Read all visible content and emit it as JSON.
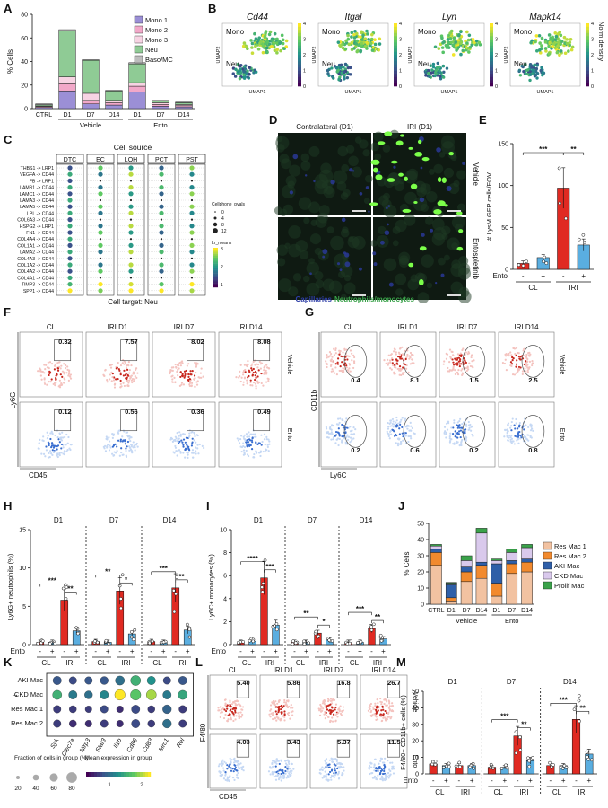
{
  "panel_letters": [
    "A",
    "B",
    "C",
    "D",
    "E",
    "F",
    "G",
    "H",
    "I",
    "J",
    "K",
    "L",
    "M"
  ],
  "colors": {
    "mono1": "#9b8fd6",
    "mono2": "#f2a8c9",
    "mono3": "#f7d3e3",
    "neu": "#8fcb95",
    "baso": "#bdbdbd",
    "resmac1": "#f2c2a1",
    "resmac2": "#f28a2e",
    "akimac": "#2f5fa8",
    "ckdmac": "#d9c9ec",
    "prolif": "#3aa24a",
    "red": "#e02a22",
    "blue": "#5aaee0",
    "viridis_lo": "#3b1f6e",
    "viridis_hi": "#f4e61e"
  },
  "panelA": {
    "ylabel": "% Cells",
    "legend": [
      "Mono 1",
      "Mono 2",
      "Mono 3",
      "Neu",
      "Baso/MC"
    ],
    "categories": [
      "CTRL",
      "D1",
      "D7",
      "D14",
      "D1",
      "D7",
      "D14"
    ],
    "groups": [
      "Vehicle",
      "Ento"
    ],
    "yticks": [
      "0",
      "20",
      "40",
      "60",
      "80"
    ],
    "chart_data": {
      "type": "bar",
      "stacked": true,
      "ylim": [
        0,
        80
      ],
      "categories": [
        "CTRL",
        "D1",
        "D7",
        "D14",
        "D1",
        "D7",
        "D14"
      ],
      "series": [
        {
          "name": "Mono 1",
          "values": [
            1,
            15,
            4,
            3,
            14,
            2,
            1.5
          ]
        },
        {
          "name": "Mono 2",
          "values": [
            0.8,
            6,
            3,
            2,
            5,
            1.5,
            1
          ]
        },
        {
          "name": "Mono 3",
          "values": [
            0.5,
            6,
            6,
            2,
            3,
            1.5,
            1
          ]
        },
        {
          "name": "Neu",
          "values": [
            1,
            39,
            28,
            8,
            16,
            1.5,
            1.5
          ]
        },
        {
          "name": "Baso/MC",
          "values": [
            0.7,
            1,
            0.5,
            0.5,
            1,
            0.5,
            0.5
          ]
        }
      ]
    }
  },
  "panelB": {
    "genes": [
      "Cd44",
      "Itgal",
      "Lyn",
      "Mapk14"
    ],
    "mono": "Mono",
    "neu": "Neu",
    "xlabel": "UMAP1",
    "ylabel": "UMAP2",
    "colorbar_ticks": [
      "0",
      "1",
      "2",
      "3",
      "4"
    ],
    "colorbar_label": "Norm density"
  },
  "panelC": {
    "title": "Cell source",
    "sources": [
      "DTC",
      "EC",
      "LOH",
      "PCT",
      "PST"
    ],
    "pairs": [
      "THBS1 -> LRP1",
      "VEGFA -> CD44",
      "FB -> LRP1",
      "LAMB1 -> CD44",
      "LAMC1 -> CD44",
      "LAMA3 -> CD44",
      "LAMA5 -> CD44",
      "LPL -> CD44",
      "COL6A3 -> CD44",
      "HSPG2 -> LRP1",
      "FN1 -> CD44",
      "COL4A4 -> CD44",
      "COL1A1 -> CD44",
      "LAMA2 -> CD44",
      "COL4A3 -> CD44",
      "COL1A2 -> CD44",
      "COL4A2 -> CD44",
      "COL4A1 -> CD44",
      "TIMP3 -> CD44",
      "SPP1 -> CD44"
    ],
    "target": "Cell target: Neu",
    "size_legend_title": "Cellphone_pvals",
    "size_legend": [
      "0",
      "4",
      "8",
      "12"
    ],
    "color_legend_title": "Lr_means",
    "color_legend": [
      "3",
      "2",
      "1"
    ]
  },
  "panelD": {
    "cols": [
      "Contralateral (D1)",
      "IRI (D1)"
    ],
    "rows": [
      "Vehicle",
      "Entospletinib"
    ],
    "caption_a": "Capillaries",
    "caption_b": "Neutrophils/monocytes"
  },
  "panelE": {
    "ylabel": "# LysM GFP cells/FOV",
    "yticks": [
      "0",
      "50",
      "100",
      "150"
    ],
    "ento_label": "Ento",
    "signs": [
      "-",
      "+",
      "-",
      "+"
    ],
    "groups": [
      "CL",
      "IRI"
    ],
    "sig": [
      "***",
      "**"
    ],
    "chart_data": {
      "type": "bar",
      "categories": [
        "CL -",
        "CL +",
        "IRI -",
        "IRI +"
      ],
      "values": [
        7,
        14,
        97,
        29
      ],
      "ylim": [
        0,
        150
      ]
    }
  },
  "panelF": {
    "conditions": [
      "CL",
      "IRI D1",
      "IRI D7",
      "IRI D14"
    ],
    "rows": [
      "Vehicle",
      "Ento"
    ],
    "xlabel": "CD45",
    "ylabel": "Ly6G",
    "vehicle_values": [
      "0.32",
      "7.57",
      "8.02",
      "8.08"
    ],
    "ento_values": [
      "0.12",
      "0.56",
      "0.36",
      "0.49"
    ]
  },
  "panelG": {
    "conditions": [
      "CL",
      "IRI D1",
      "IRI D7",
      "IRI D14"
    ],
    "rows": [
      "Vehicle",
      "Ento"
    ],
    "xlabel": "Ly6C",
    "ylabel": "CD11b",
    "vehicle_values": [
      "0.4",
      "8.1",
      "1.5",
      "2.5"
    ],
    "ento_values": [
      "0.2",
      "0.6",
      "0.2",
      "0.8"
    ]
  },
  "panelH": {
    "ylabel": "Ly6G+ neutrophils (%)",
    "days": [
      "D1",
      "D7",
      "D14"
    ],
    "yticks": [
      "0",
      "5",
      "10",
      "15"
    ],
    "ento_label": "Ento",
    "signs": [
      "-",
      "+",
      "-",
      "+"
    ],
    "groups": [
      "CL",
      "IRI"
    ],
    "sig": [
      [
        "***",
        "**"
      ],
      [
        "**",
        "*"
      ],
      [
        "***",
        "**"
      ]
    ],
    "chart_data": {
      "type": "bar",
      "ylim": [
        0,
        15
      ],
      "categories": [
        "CL -",
        "CL +",
        "IRI -",
        "IRI +"
      ],
      "series": [
        {
          "name": "D1",
          "values": [
            0.3,
            0.3,
            5.8,
            1.8
          ]
        },
        {
          "name": "D7",
          "values": [
            0.4,
            0.3,
            7,
            1.4
          ]
        },
        {
          "name": "D14",
          "values": [
            0.4,
            0.3,
            7.4,
            1.9
          ]
        }
      ]
    }
  },
  "panelI": {
    "ylabel": "Ly6C+ monocytes (%)",
    "days": [
      "D1",
      "D7",
      "D14"
    ],
    "yticks": [
      "0",
      "2",
      "4",
      "6",
      "8",
      "10"
    ],
    "ento_label": "Ento",
    "signs": [
      "-",
      "+",
      "-",
      "+"
    ],
    "groups": [
      "CL",
      "IRI"
    ],
    "sig": [
      [
        "****",
        "***"
      ],
      [
        "**",
        "*"
      ],
      [
        "***",
        "**"
      ]
    ],
    "chart_data": {
      "type": "bar",
      "ylim": [
        0,
        10
      ],
      "categories": [
        "CL -",
        "CL +",
        "IRI -",
        "IRI +"
      ],
      "series": [
        {
          "name": "D1",
          "values": [
            0.2,
            0.3,
            5.8,
            1.7
          ]
        },
        {
          "name": "D7",
          "values": [
            0.2,
            0.2,
            1.0,
            0.4
          ]
        },
        {
          "name": "D14",
          "values": [
            0.2,
            0.2,
            1.4,
            0.5
          ]
        }
      ]
    }
  },
  "panelJ": {
    "ylabel": "% Cells",
    "legend": [
      "Res Mac 1",
      "Res Mac 2",
      "AKI Mac",
      "CKD Mac",
      "Prolif Mac"
    ],
    "categories": [
      "CTRL",
      "D1",
      "D7",
      "D14",
      "D1",
      "D7",
      "D14"
    ],
    "groups": [
      "Vehicle",
      "Ento"
    ],
    "yticks": [
      "0",
      "10",
      "20",
      "30",
      "40",
      "50"
    ],
    "chart_data": {
      "type": "bar",
      "stacked": true,
      "ylim": [
        0,
        50
      ],
      "categories": [
        "CTRL",
        "D1",
        "D7",
        "D14",
        "D1",
        "D7",
        "D14"
      ],
      "series": [
        {
          "name": "Res Mac 1",
          "values": [
            24,
            2,
            14,
            16,
            5,
            19,
            20
          ]
        },
        {
          "name": "Res Mac 2",
          "values": [
            8,
            2,
            6,
            8,
            8,
            6,
            6
          ]
        },
        {
          "name": "AKI Mac",
          "values": [
            2,
            8,
            3,
            2,
            12,
            2,
            2
          ]
        },
        {
          "name": "CKD Mac",
          "values": [
            2,
            1,
            4,
            18,
            2,
            5,
            7
          ]
        },
        {
          "name": "Prolif Mac",
          "values": [
            1,
            0.5,
            3,
            3,
            1,
            2,
            2
          ]
        }
      ]
    }
  },
  "panelK": {
    "rows": [
      "AKI Mac",
      "CKD Mac",
      "Res Mac 1",
      "Res Mac 2"
    ],
    "genes": [
      "Syk",
      "Clec7a",
      "Nlrp3",
      "Stat3",
      "Il1b",
      "Cd86",
      "Cd83",
      "Mrc1",
      "Rel"
    ],
    "fraction_title": "Fraction of cells in group (%)",
    "fraction_ticks": [
      "20",
      "40",
      "60",
      "80"
    ],
    "expr_title": "Mean expression in group",
    "expr_ticks": [
      "1",
      "2"
    ],
    "expression": [
      [
        0.6,
        0.5,
        0.6,
        0.6,
        0.8,
        1.4,
        1.1,
        0.5,
        0.6
      ],
      [
        1.4,
        0.9,
        0.8,
        1.0,
        2.2,
        1.6,
        1.9,
        0.9,
        1.3
      ],
      [
        0.4,
        0.4,
        0.4,
        0.5,
        0.3,
        0.5,
        0.4,
        0.7,
        0.4
      ],
      [
        0.4,
        0.3,
        0.3,
        0.4,
        0.3,
        0.5,
        0.4,
        0.8,
        0.4
      ]
    ],
    "fraction": [
      [
        60,
        50,
        50,
        55,
        70,
        80,
        60,
        50,
        60
      ],
      [
        70,
        60,
        55,
        60,
        85,
        85,
        80,
        60,
        70
      ],
      [
        50,
        45,
        40,
        50,
        40,
        60,
        45,
        65,
        50
      ],
      [
        50,
        45,
        40,
        50,
        40,
        60,
        45,
        65,
        50
      ]
    ]
  },
  "panelL": {
    "conditions": [
      "CL",
      "IRI D1",
      "IRI D7",
      "IRI D14"
    ],
    "rows": [
      "Vehicle",
      "Ento"
    ],
    "xlabel": "CD45",
    "ylabel": "F4/80",
    "vehicle_values": [
      "5.40",
      "5.86",
      "16.8",
      "26.7"
    ],
    "ento_values": [
      "4.03",
      "3.43",
      "5.37",
      "11.5"
    ]
  },
  "panelM": {
    "ylabel": "F4/80+ CD11b+ cells (%)",
    "days": [
      "D1",
      "D7",
      "D14"
    ],
    "yticks": [
      "0",
      "10",
      "20",
      "30",
      "40",
      "50"
    ],
    "ento_label": "Ento",
    "signs": [
      "-",
      "+",
      "-",
      "+"
    ],
    "groups": [
      "CL",
      "IRI"
    ],
    "sig": [
      [
        "",
        ""
      ],
      [
        "***",
        "**"
      ],
      [
        "***",
        "**"
      ]
    ],
    "chart_data": {
      "type": "bar",
      "ylim": [
        0,
        50
      ],
      "categories": [
        "CL -",
        "CL +",
        "IRI -",
        "IRI +"
      ],
      "series": [
        {
          "name": "D1",
          "values": [
            6,
            5,
            5,
            5
          ]
        },
        {
          "name": "D7",
          "values": [
            4,
            4,
            23,
            8
          ]
        },
        {
          "name": "D14",
          "values": [
            5,
            5,
            33,
            12
          ]
        }
      ]
    }
  }
}
